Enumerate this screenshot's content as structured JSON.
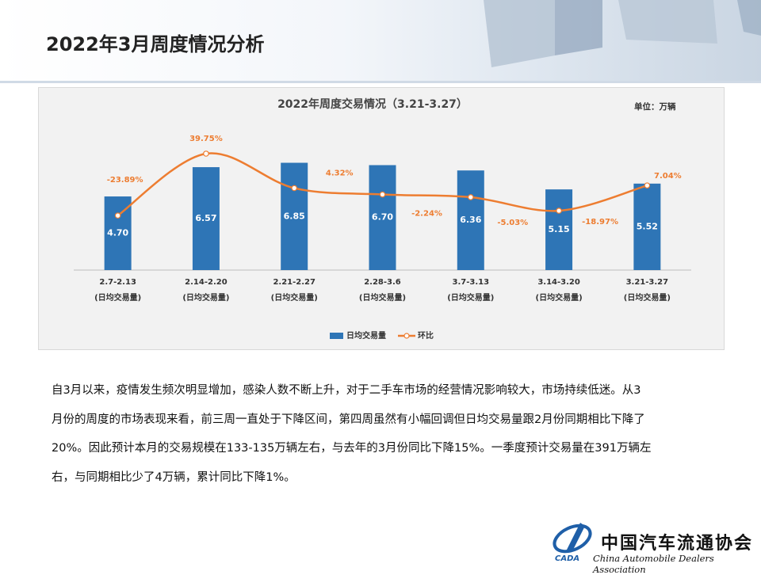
{
  "header": {
    "title": "2022年3月周度情况分析"
  },
  "chart_data": {
    "type": "bar",
    "title": "2022年周度交易情况（3.21-3.27）",
    "unit_note": "单位：万辆",
    "categories": [
      "2.7-2.13",
      "2.14-2.20",
      "2.21-2.27",
      "2.28-3.6",
      "3.7-3.13",
      "3.14-3.20",
      "3.21-3.27"
    ],
    "category_sublabels": [
      "(日均交易量)",
      "(日均交易量)",
      "(日均交易量)",
      "(日均交易量)",
      "(日均交易量)",
      "(日均交易量)",
      "(日均交易量)"
    ],
    "ylim": [
      0,
      9
    ],
    "y2lim": [
      -80,
      65
    ],
    "series": [
      {
        "name": "日均交易量",
        "type": "bar",
        "color": "#2e75b6",
        "values": [
          4.7,
          6.57,
          6.85,
          6.7,
          6.36,
          5.15,
          5.52
        ],
        "value_labels": [
          "4.70",
          "6.57",
          "6.85",
          "6.70",
          "6.36",
          "5.15",
          "5.52"
        ]
      },
      {
        "name": "环比",
        "type": "line",
        "axis": "y2",
        "color": "#ed7d31",
        "values": [
          -23.89,
          39.75,
          4.32,
          -2.24,
          -5.03,
          -18.97,
          7.04
        ],
        "value_labels": [
          "-23.89%",
          "39.75%",
          "4.32%",
          "-2.24%",
          "-5.03%",
          "-18.97%",
          "7.04%"
        ]
      }
    ],
    "legend": "bottom"
  },
  "paragraph_lines": [
    "自3月以来，疫情发生频次明显增加，感染人数不断上升，对于二手车市场的经营情况影响较大，市场持续低迷。从3",
    "月份的周度的市场表现来看，前三周一直处于下降区间，第四周虽然有小幅回调但日均交易量跟2月份同期相比下降了",
    "20%。因此预计本月的交易规模在133-135万辆左右，与去年的3月份同比下降15%。一季度预计交易量在391万辆左",
    "右，与同期相比少了4万辆，累计同比下降1%。"
  ],
  "logo": {
    "acronym": "CADA",
    "name_cn": "中国汽车流通协会",
    "name_en": "China Automobile Dealers Association"
  }
}
